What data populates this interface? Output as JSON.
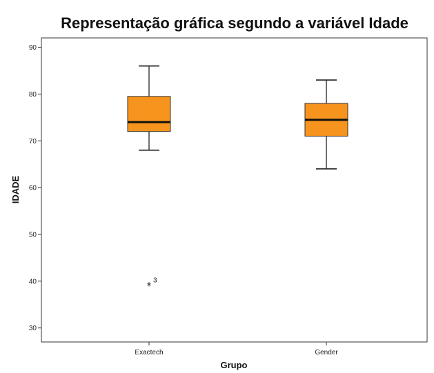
{
  "chart_data": {
    "type": "boxplot",
    "title": "Representação gráfica segundo a variável Idade",
    "xlabel": "Grupo",
    "ylabel": "IDADE",
    "ylim": [
      27,
      92
    ],
    "yticks": [
      30,
      40,
      50,
      60,
      70,
      80,
      90
    ],
    "ytick_labels": [
      "30",
      "40",
      "50",
      "60",
      "70",
      "80",
      "90"
    ],
    "categories": [
      "Exactech",
      "Gender"
    ],
    "grid": false,
    "legend": "none",
    "box_color": "#F7941D",
    "boxes": [
      {
        "category": "Exactech",
        "whisker_low": 68,
        "q1": 72,
        "median": 74,
        "q3": 79.5,
        "whisker_high": 86,
        "outliers": [
          {
            "value": 39,
            "label": "3"
          }
        ]
      },
      {
        "category": "Gender",
        "whisker_low": 64,
        "q1": 71,
        "median": 74.5,
        "q3": 78,
        "whisker_high": 83,
        "outliers": []
      }
    ]
  }
}
